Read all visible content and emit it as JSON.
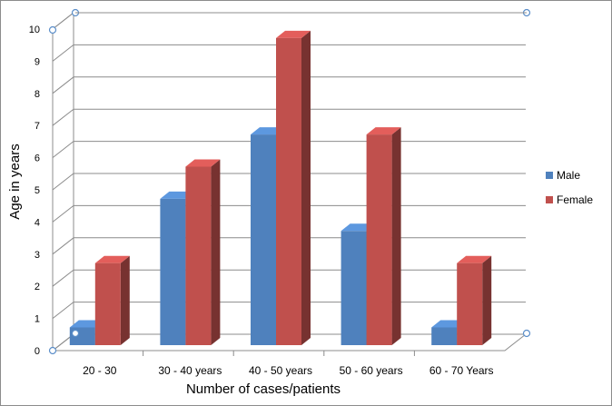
{
  "chart_data": {
    "type": "bar",
    "title": "",
    "xlabel": "Number of cases/patients",
    "ylabel": "Age in years",
    "categories": [
      "20 - 30",
      "30 - 40 years",
      "40 - 50 years",
      "50 - 60 years",
      "60 - 70 Years"
    ],
    "series": [
      {
        "name": "Male",
        "values": [
          1,
          5,
          7,
          4,
          1
        ],
        "color": "#4F81BD"
      },
      {
        "name": "Female",
        "values": [
          3,
          6,
          10,
          7,
          3
        ],
        "color": "#C0504D"
      }
    ],
    "ylim": [
      0,
      10
    ],
    "yticks": [
      "0",
      "1",
      "2",
      "3",
      "4",
      "5",
      "6",
      "7",
      "8",
      "9",
      "10"
    ],
    "grid": true,
    "legend_position": "right",
    "style": "3d-column"
  }
}
